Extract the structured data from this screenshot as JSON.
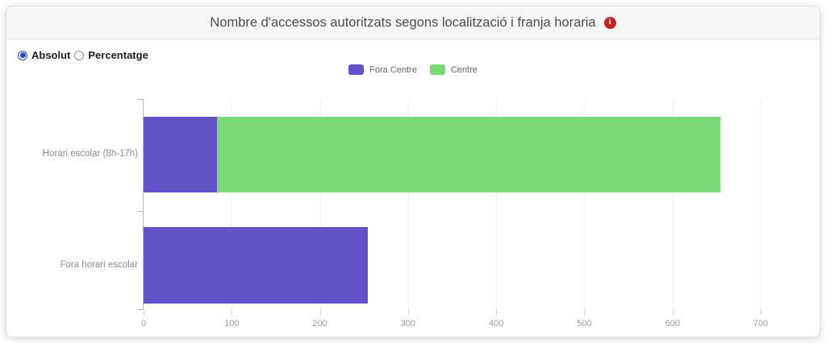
{
  "header": {
    "title": "Nombre d'accessos autoritzats segons localització i franja horaria",
    "info_icon": "i"
  },
  "controls": {
    "radios": [
      {
        "label": "Absolut",
        "selected": true
      },
      {
        "label": "Percentatge",
        "selected": false
      }
    ]
  },
  "chart_data": {
    "type": "bar",
    "orientation": "horizontal",
    "stacked": true,
    "title": "Nombre d'accessos autoritzats segons localització i franja horaria",
    "categories": [
      "Horari escolar (8h-17h)",
      "Fora horari escolar"
    ],
    "series": [
      {
        "name": "Fora Centre",
        "color": "#6453c8",
        "values": [
          83,
          254
        ]
      },
      {
        "name": "Centre",
        "color": "#79d976",
        "values": [
          570,
          0
        ]
      }
    ],
    "xlabel": "",
    "ylabel": "",
    "xlim": [
      0,
      700
    ],
    "xticks": [
      0,
      100,
      200,
      300,
      400,
      500,
      600,
      700
    ],
    "legend_position": "top-center",
    "grid": "vertical"
  }
}
